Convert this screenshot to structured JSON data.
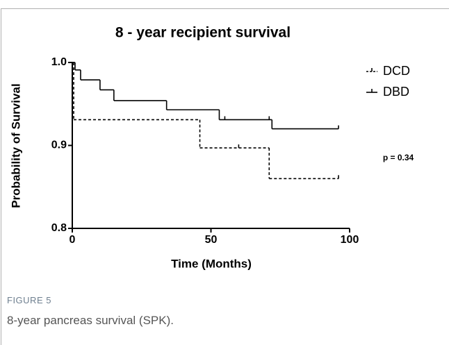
{
  "chart_data": {
    "type": "survival",
    "title": "8 - year recipient survival",
    "xlabel": "Time (Months)",
    "ylabel": "Probability of Survival",
    "annotation": "p = 0.34",
    "xlim": [
      0,
      100
    ],
    "xticks": [
      0,
      50,
      100
    ],
    "ylim": [
      0.8,
      1
    ],
    "yticks": [
      0.8,
      0.9,
      {
        "value": 1,
        "label": "1.0"
      }
    ],
    "legend": "upper right",
    "series": [
      {
        "name": "DCD",
        "color": "#000000",
        "dashed": true,
        "x": [
          0,
          0.5,
          46,
          71,
          96
        ],
        "values": [
          1,
          0.931,
          0.897,
          0.86,
          0.86
        ],
        "censor_x": [
          60,
          96
        ],
        "censor_values": [
          0.897,
          0.86
        ]
      },
      {
        "name": "DBD",
        "color": "#000000",
        "dashed": false,
        "x": [
          0,
          1,
          3,
          10,
          15,
          34,
          53,
          72,
          96
        ],
        "values": [
          1,
          0.991,
          0.979,
          0.967,
          0.954,
          0.943,
          0.931,
          0.92,
          0.92
        ],
        "censor_x": [
          55,
          71,
          96
        ],
        "censor_values": [
          0.931,
          0.931,
          0.92
        ]
      }
    ]
  },
  "caption": {
    "label": "FIGURE 5",
    "text": "8-year pancreas survival (SPK)."
  }
}
